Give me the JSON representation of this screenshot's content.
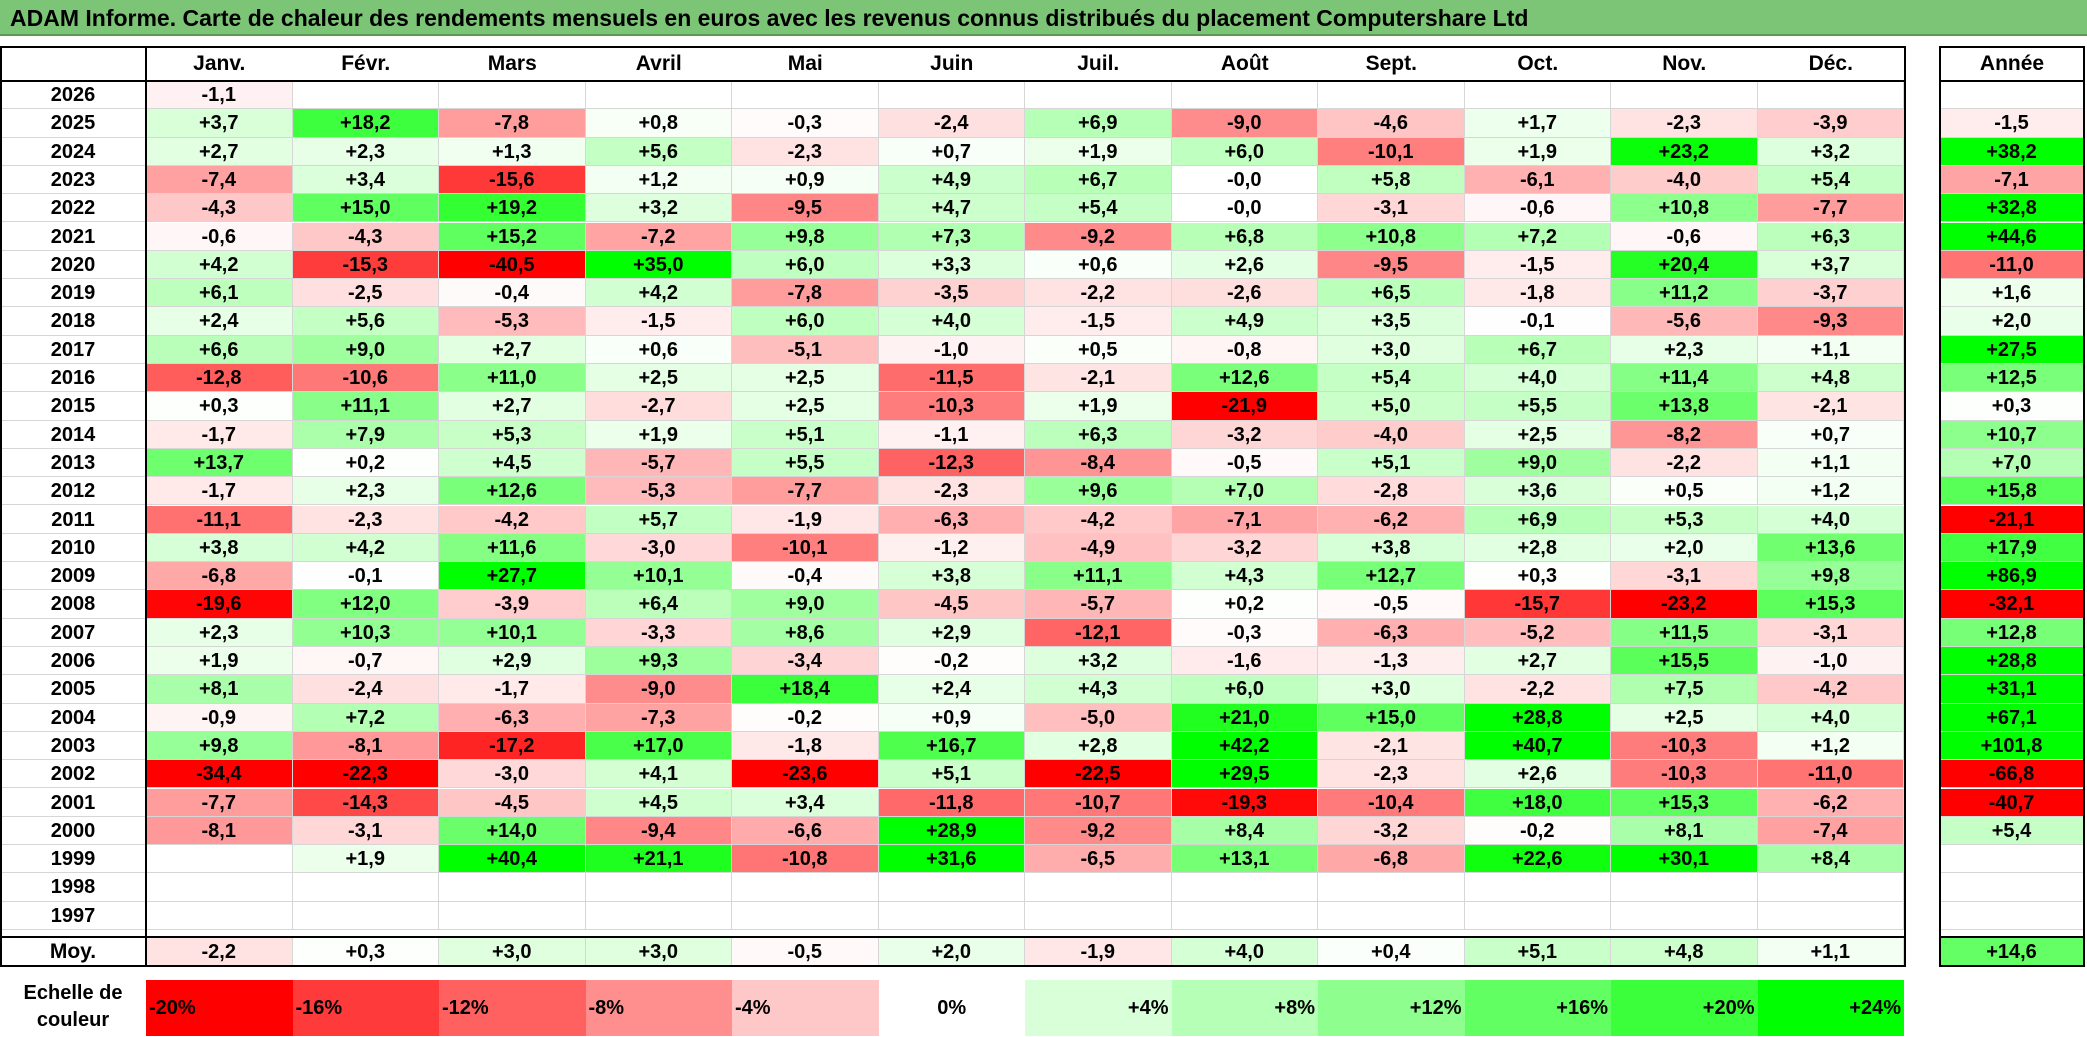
{
  "title": "ADAM Informe. Carte de chaleur des rendements mensuels en euros avec les revenus connus distribués du placement Computershare Ltd",
  "chart_data": {
    "type": "heatmap",
    "title": "ADAM Informe. Carte de chaleur des rendements mensuels en euros avec les revenus connus distribués du placement Computershare Ltd",
    "months": [
      "Janv.",
      "Févr.",
      "Mars",
      "Avril",
      "Mai",
      "Juin",
      "Juil.",
      "Août",
      "Sept.",
      "Oct.",
      "Nov.",
      "Déc."
    ],
    "year_header": "Année",
    "rows": [
      {
        "year": "2026",
        "months": [
          "-1,1",
          "",
          "",
          "",
          "",
          "",
          "",
          "",
          "",
          "",
          "",
          ""
        ],
        "annual": ""
      },
      {
        "year": "2025",
        "months": [
          "+3,7",
          "+18,2",
          "-7,8",
          "+0,8",
          "-0,3",
          "-2,4",
          "+6,9",
          "-9,0",
          "-4,6",
          "+1,7",
          "-2,3",
          "-3,9"
        ],
        "annual": "-1,5"
      },
      {
        "year": "2024",
        "months": [
          "+2,7",
          "+2,3",
          "+1,3",
          "+5,6",
          "-2,3",
          "+0,7",
          "+1,9",
          "+6,0",
          "-10,1",
          "+1,9",
          "+23,2",
          "+3,2"
        ],
        "annual": "+38,2"
      },
      {
        "year": "2023",
        "months": [
          "-7,4",
          "+3,4",
          "-15,6",
          "+1,2",
          "+0,9",
          "+4,9",
          "+6,7",
          "-0,0",
          "+5,8",
          "-6,1",
          "-4,0",
          "+5,4"
        ],
        "annual": "-7,1"
      },
      {
        "year": "2022",
        "months": [
          "-4,3",
          "+15,0",
          "+19,2",
          "+3,2",
          "-9,5",
          "+4,7",
          "+5,4",
          "-0,0",
          "-3,1",
          "-0,6",
          "+10,8",
          "-7,7"
        ],
        "annual": "+32,8"
      },
      {
        "year": "2021",
        "months": [
          "-0,6",
          "-4,3",
          "+15,2",
          "-7,2",
          "+9,8",
          "+7,3",
          "-9,2",
          "+6,8",
          "+10,8",
          "+7,2",
          "-0,6",
          "+6,3"
        ],
        "annual": "+44,6"
      },
      {
        "year": "2020",
        "months": [
          "+4,2",
          "-15,3",
          "-40,5",
          "+35,0",
          "+6,0",
          "+3,3",
          "+0,6",
          "+2,6",
          "-9,5",
          "-1,5",
          "+20,4",
          "+3,7"
        ],
        "annual": "-11,0"
      },
      {
        "year": "2019",
        "months": [
          "+6,1",
          "-2,5",
          "-0,4",
          "+4,2",
          "-7,8",
          "-3,5",
          "-2,2",
          "-2,6",
          "+6,5",
          "-1,8",
          "+11,2",
          "-3,7"
        ],
        "annual": "+1,6"
      },
      {
        "year": "2018",
        "months": [
          "+2,4",
          "+5,6",
          "-5,3",
          "-1,5",
          "+6,0",
          "+4,0",
          "-1,5",
          "+4,9",
          "+3,5",
          "-0,1",
          "-5,6",
          "-9,3"
        ],
        "annual": "+2,0"
      },
      {
        "year": "2017",
        "months": [
          "+6,6",
          "+9,0",
          "+2,7",
          "+0,6",
          "-5,1",
          "-1,0",
          "+0,5",
          "-0,8",
          "+3,0",
          "+6,7",
          "+2,3",
          "+1,1"
        ],
        "annual": "+27,5"
      },
      {
        "year": "2016",
        "months": [
          "-12,8",
          "-10,6",
          "+11,0",
          "+2,5",
          "+2,5",
          "-11,5",
          "-2,1",
          "+12,6",
          "+5,4",
          "+4,0",
          "+11,4",
          "+4,8"
        ],
        "annual": "+12,5"
      },
      {
        "year": "2015",
        "months": [
          "+0,3",
          "+11,1",
          "+2,7",
          "-2,7",
          "+2,5",
          "-10,3",
          "+1,9",
          "-21,9",
          "+5,0",
          "+5,5",
          "+13,8",
          "-2,1"
        ],
        "annual": "+0,3"
      },
      {
        "year": "2014",
        "months": [
          "-1,7",
          "+7,9",
          "+5,3",
          "+1,9",
          "+5,1",
          "-1,1",
          "+6,3",
          "-3,2",
          "-4,0",
          "+2,5",
          "-8,2",
          "+0,7"
        ],
        "annual": "+10,7"
      },
      {
        "year": "2013",
        "months": [
          "+13,7",
          "+0,2",
          "+4,5",
          "-5,7",
          "+5,5",
          "-12,3",
          "-8,4",
          "-0,5",
          "+5,1",
          "+9,0",
          "-2,2",
          "+1,1"
        ],
        "annual": "+7,0"
      },
      {
        "year": "2012",
        "months": [
          "-1,7",
          "+2,3",
          "+12,6",
          "-5,3",
          "-7,7",
          "-2,3",
          "+9,6",
          "+7,0",
          "-2,8",
          "+3,6",
          "+0,5",
          "+1,2"
        ],
        "annual": "+15,8"
      },
      {
        "year": "2011",
        "months": [
          "-11,1",
          "-2,3",
          "-4,2",
          "+5,7",
          "-1,9",
          "-6,3",
          "-4,2",
          "-7,1",
          "-6,2",
          "+6,9",
          "+5,3",
          "+4,0"
        ],
        "annual": "-21,1"
      },
      {
        "year": "2010",
        "months": [
          "+3,8",
          "+4,2",
          "+11,6",
          "-3,0",
          "-10,1",
          "-1,2",
          "-4,9",
          "-3,2",
          "+3,8",
          "+2,8",
          "+2,0",
          "+13,6"
        ],
        "annual": "+17,9"
      },
      {
        "year": "2009",
        "months": [
          "-6,8",
          "-0,1",
          "+27,7",
          "+10,1",
          "-0,4",
          "+3,8",
          "+11,1",
          "+4,3",
          "+12,7",
          "+0,3",
          "-3,1",
          "+9,8"
        ],
        "annual": "+86,9"
      },
      {
        "year": "2008",
        "months": [
          "-19,6",
          "+12,0",
          "-3,9",
          "+6,4",
          "+9,0",
          "-4,5",
          "-5,7",
          "+0,2",
          "-0,5",
          "-15,7",
          "-23,2",
          "+15,3"
        ],
        "annual": "-32,1"
      },
      {
        "year": "2007",
        "months": [
          "+2,3",
          "+10,3",
          "+10,1",
          "-3,3",
          "+8,6",
          "+2,9",
          "-12,1",
          "-0,3",
          "-6,3",
          "-5,2",
          "+11,5",
          "-3,1"
        ],
        "annual": "+12,8"
      },
      {
        "year": "2006",
        "months": [
          "+1,9",
          "-0,7",
          "+2,9",
          "+9,3",
          "-3,4",
          "-0,2",
          "+3,2",
          "-1,6",
          "-1,3",
          "+2,7",
          "+15,5",
          "-1,0"
        ],
        "annual": "+28,8"
      },
      {
        "year": "2005",
        "months": [
          "+8,1",
          "-2,4",
          "-1,7",
          "-9,0",
          "+18,4",
          "+2,4",
          "+4,3",
          "+6,0",
          "+3,0",
          "-2,2",
          "+7,5",
          "-4,2"
        ],
        "annual": "+31,1"
      },
      {
        "year": "2004",
        "months": [
          "-0,9",
          "+7,2",
          "-6,3",
          "-7,3",
          "-0,2",
          "+0,9",
          "-5,0",
          "+21,0",
          "+15,0",
          "+28,8",
          "+2,5",
          "+4,0"
        ],
        "annual": "+67,1"
      },
      {
        "year": "2003",
        "months": [
          "+9,8",
          "-8,1",
          "-17,2",
          "+17,0",
          "-1,8",
          "+16,7",
          "+2,8",
          "+42,2",
          "-2,1",
          "+40,7",
          "-10,3",
          "+1,2"
        ],
        "annual": "+101,8"
      },
      {
        "year": "2002",
        "months": [
          "-34,4",
          "-22,3",
          "-3,0",
          "+4,1",
          "-23,6",
          "+5,1",
          "-22,5",
          "+29,5",
          "-2,3",
          "+2,6",
          "-10,3",
          "-11,0"
        ],
        "annual": "-66,8"
      },
      {
        "year": "2001",
        "months": [
          "-7,7",
          "-14,3",
          "-4,5",
          "+4,5",
          "+3,4",
          "-11,8",
          "-10,7",
          "-19,3",
          "-10,4",
          "+18,0",
          "+15,3",
          "-6,2"
        ],
        "annual": "-40,7"
      },
      {
        "year": "2000",
        "months": [
          "-8,1",
          "-3,1",
          "+14,0",
          "-9,4",
          "-6,6",
          "+28,9",
          "-9,2",
          "+8,4",
          "-3,2",
          "-0,2",
          "+8,1",
          "-7,4"
        ],
        "annual": "+5,4"
      },
      {
        "year": "1999",
        "months": [
          "",
          "+1,9",
          "+40,4",
          "+21,1",
          "-10,8",
          "+31,6",
          "-6,5",
          "+13,1",
          "-6,8",
          "+22,6",
          "+30,1",
          "+8,4"
        ],
        "annual": ""
      },
      {
        "year": "1998",
        "months": [
          "",
          "",
          "",
          "",
          "",
          "",
          "",
          "",
          "",
          "",
          "",
          ""
        ],
        "annual": ""
      },
      {
        "year": "1997",
        "months": [
          "",
          "",
          "",
          "",
          "",
          "",
          "",
          "",
          "",
          "",
          "",
          ""
        ],
        "annual": ""
      }
    ],
    "average": {
      "label": "Moy.",
      "months": [
        "-2,2",
        "+0,3",
        "+3,0",
        "+3,0",
        "-0,5",
        "+2,0",
        "-1,9",
        "+4,0",
        "+0,4",
        "+5,1",
        "+4,8",
        "+1,1"
      ],
      "annual": "+14,6"
    },
    "color_scale": {
      "label": "Echelle de couleur",
      "steps": [
        "-20%",
        "-16%",
        "-12%",
        "-8%",
        "-4%",
        "0%",
        "+4%",
        "+8%",
        "+12%",
        "+16%",
        "+20%",
        "+24%"
      ],
      "step_values": [
        -20,
        -16,
        -12,
        -8,
        -4,
        0,
        4,
        8,
        12,
        16,
        20,
        24
      ],
      "colors": [
        "#ff0000",
        "#ff3a3a",
        "#ff6060",
        "#ff8e8e",
        "#ffc8c8",
        "#ffffff",
        "#d9ffd9",
        "#b6ffb6",
        "#8eff8e",
        "#62ff62",
        "#3cff3c",
        "#00ff00"
      ]
    }
  }
}
